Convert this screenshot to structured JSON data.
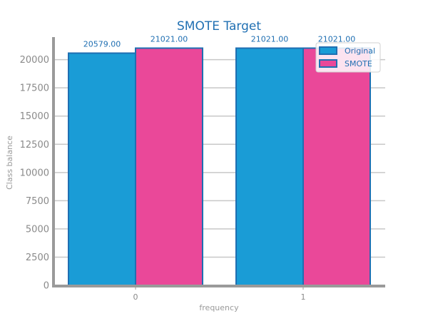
{
  "chart_data": {
    "type": "bar",
    "title": "SMOTE Target",
    "xlabel": "frequency",
    "ylabel": "Class balance",
    "categories": [
      "0",
      "1"
    ],
    "series": [
      {
        "name": "Original",
        "values": [
          20579,
          21021
        ],
        "labels": [
          "20579.00",
          "21021.00"
        ],
        "color": "#1a9cd6"
      },
      {
        "name": "SMOTE",
        "values": [
          21021,
          21021
        ],
        "labels": [
          "21021.00",
          "21021.00"
        ],
        "color": "#ea4899"
      }
    ],
    "yticks": [
      "0",
      "2500",
      "5000",
      "7500",
      "10000",
      "12500",
      "15000",
      "17500",
      "20000"
    ],
    "ylim": [
      0,
      22000
    ],
    "grid": true,
    "legend_position": "top-right",
    "bar_edge_color": "#1f6fb2"
  }
}
